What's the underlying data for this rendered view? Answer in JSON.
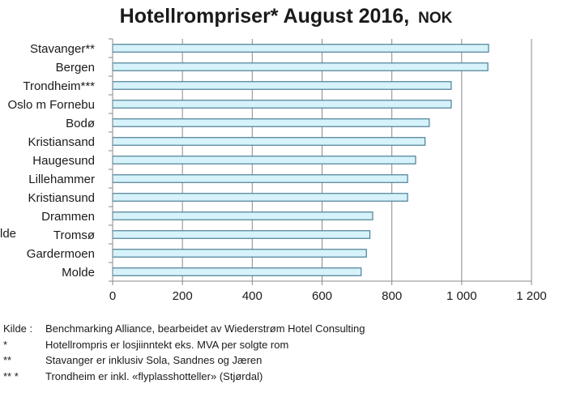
{
  "header": {
    "title": "Hotellrompriser* August 2016,",
    "title_unit": "NOK"
  },
  "stray_label": "lde",
  "chart_data": {
    "type": "bar",
    "orientation": "horizontal",
    "title": "Hotellrompriser* August 2016, NOK",
    "categories": [
      "Stavanger**",
      "Bergen",
      "Trondheim***",
      "Oslo m Fornebu",
      "Bodø",
      "Kristiansand",
      "Haugesund",
      "Lillehammer",
      "Kristiansund",
      "Drammen",
      "Tromsø",
      "Gardermoen",
      "Molde"
    ],
    "values": [
      1077,
      1075,
      970,
      970,
      907,
      895,
      868,
      845,
      845,
      745,
      737,
      727,
      712
    ],
    "xlim": [
      0,
      1200
    ],
    "xticks": [
      0,
      200,
      400,
      600,
      800,
      1000,
      1200
    ],
    "xtick_labels": [
      "0",
      "200",
      "400",
      "600",
      "800",
      "1 000",
      "1 200"
    ],
    "grid": true,
    "bar_color": "#d6f2fb",
    "bar_edge_color": "#4a7f95"
  },
  "footnotes": [
    {
      "mark": "Kilde :",
      "text": "Benchmarking Alliance, bearbeidet av Wiederstrøm Hotel Consulting"
    },
    {
      "mark": "*",
      "text": "Hotellrompris er losjiinntekt eks. MVA per solgte rom"
    },
    {
      "mark": "**",
      "text": "Stavanger er inklusiv Sola, Sandnes og Jæren"
    },
    {
      "mark": "** *",
      "text": "Trondheim er inkl. «flyplasshotteller» (Stjørdal)"
    }
  ]
}
